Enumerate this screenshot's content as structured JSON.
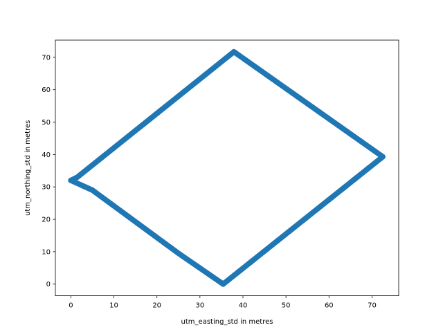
{
  "chart_data": {
    "type": "scatter",
    "title": "",
    "xlabel": "utm_easting_std in metres",
    "ylabel": "utm_northing_std in metres",
    "xlim": [
      -3.6,
      76.2
    ],
    "ylim": [
      -3.6,
      75.3
    ],
    "xticks": [
      0,
      10,
      20,
      30,
      40,
      50,
      60,
      70
    ],
    "yticks": [
      0,
      10,
      20,
      30,
      40,
      50,
      60,
      70
    ],
    "grid": false,
    "legend": "none",
    "series": [
      {
        "color": "#1f77b4",
        "path_vertices": [
          {
            "x": 0.0,
            "y": 32.0
          },
          {
            "x": 1.5,
            "y": 33.0
          },
          {
            "x": 37.9,
            "y": 71.7
          },
          {
            "x": 72.5,
            "y": 39.3
          },
          {
            "x": 35.4,
            "y": 0.0
          },
          {
            "x": 25.0,
            "y": 9.5
          },
          {
            "x": 5.0,
            "y": 29.0
          },
          {
            "x": 0.0,
            "y": 32.0
          }
        ]
      }
    ]
  }
}
